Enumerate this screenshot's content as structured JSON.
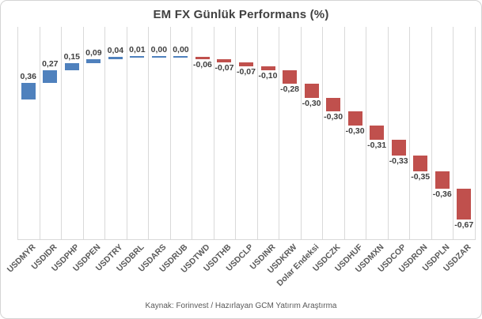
{
  "chart_data": {
    "type": "bar",
    "subtype": "waterfall",
    "title": "EM FX Günlük Performans (%)",
    "categories": [
      "USDMYR",
      "USDIDR",
      "USDPHP",
      "USDPEN",
      "USDTRY",
      "USDBRL",
      "USDARS",
      "USDRUB",
      "USDTWD",
      "USDTHB",
      "USDCLP",
      "USDINR",
      "USDKRW",
      "Dolar Endeksi",
      "USDCZK",
      "USDHUF",
      "USDMXN",
      "USDCOP",
      "USDRON",
      "USDPLN",
      "USDZAR"
    ],
    "values": [
      0.36,
      0.27,
      0.15,
      0.09,
      0.04,
      0.01,
      0.0,
      0.0,
      -0.06,
      -0.07,
      -0.07,
      -0.1,
      -0.28,
      -0.3,
      -0.3,
      -0.3,
      -0.31,
      -0.33,
      -0.35,
      -0.36,
      -0.67
    ],
    "value_labels": [
      "0,36",
      "0,27",
      "0,15",
      "0,09",
      "0,04",
      "0,01",
      "0,00",
      "0,00",
      "-0,06",
      "-0,07",
      "-0,07",
      "-0,10",
      "-0,28",
      "-0,30",
      "-0,30",
      "-0,30",
      "-0,31",
      "-0,33",
      "-0,35",
      "-0,36",
      "-0,67"
    ],
    "xlabel": "",
    "ylabel": "",
    "ylim": [
      -3.02,
      1.56
    ],
    "grid": "vertical-only",
    "legend": "none",
    "colors": {
      "positive_bar": "#4f81bd",
      "negative_bar": "#c0504d",
      "gridline": "#d9d9d9",
      "axis_line": "#d9d9d9",
      "value_label": "#404040",
      "tick_label": "#595959",
      "title": "#404040"
    }
  },
  "footer": {
    "text": "Kaynak: Forinvest / Hazırlayan GCM Yatırım Araştırma"
  }
}
